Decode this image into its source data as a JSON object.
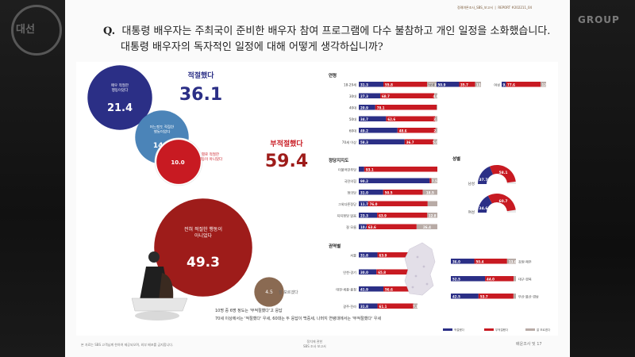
{
  "overlay": {
    "group_text": "GROUP"
  },
  "header": {
    "left": "정례여론조사_SBS_보고서",
    "right": "REPORT #202211_04"
  },
  "question": {
    "prefix": "Q.",
    "line1": "대통령 배우자는 주최국이 준비한 배우자 참여 프로그램에 다수 불참하고 개인 일정을 소화했습니다.",
    "line2": "대통령 배우자의 독자적인 일정에 대해 어떻게 생각하십니까?"
  },
  "colors": {
    "blue": "#2b2f86",
    "red": "#c81a22",
    "darkred": "#9e1c1a",
    "lightblue": "#4b84b8",
    "gray": "#b8aba6",
    "brown": "#8a6a52"
  },
  "chart_data": [
    {
      "type": "bubble",
      "summary": [
        {
          "label": "적절했다",
          "value": "36.1"
        },
        {
          "label": "부적절했다",
          "value": "59.4"
        }
      ],
      "bubbles": [
        {
          "label1": "매우 적절한",
          "label2": "행동이었다",
          "value": 21.4
        },
        {
          "label1": "어느정도 적절한",
          "label2": "행동이었다",
          "value": 14.7
        },
        {
          "label1": "별로 적절한",
          "label2": "행동이 아니었다",
          "value": 10.0
        },
        {
          "label1": "전혀 적절한 행동이",
          "label2": "아니었다",
          "value": 49.3
        },
        {
          "label1": "잘 모르겠다",
          "label2": "",
          "value": 4.5
        }
      ],
      "notes": [
        "10명 중 6명 정도는 '부적절했다'고 응답",
        "70세 이상에서는 '적절했다' 우세, 60대는 두 응답이 백중세, 나머지 연령대에서는 '부적절했다' 우세"
      ]
    },
    {
      "type": "stacked-bar",
      "title": "연령",
      "categories": [
        "18-29세",
        "30대",
        "40대",
        "50대",
        "60대",
        "70세 이상"
      ],
      "series": [
        {
          "values": [
            31.3,
            27.3,
            20.9,
            34.7,
            49.2,
            58.3
          ]
        },
        {
          "values": [
            55.8,
            68.7,
            78.1,
            62.6,
            48.6,
            36.7
          ]
        },
        {
          "values": [
            12.9,
            4.0,
            1.0,
            2.7,
            2.2,
            5.0
          ]
        }
      ]
    },
    {
      "type": "stacked-bar",
      "title": "",
      "categories": [
        "남성",
        "여성"
      ],
      "series": [
        {
          "values": [
            50.9,
            9.9
          ]
        },
        {
          "values": [
            35.7,
            77.6
          ]
        },
        {
          "values": [
            13.4,
            12.5
          ]
        }
      ]
    },
    {
      "type": "stacked-bar",
      "title": "정당지지도",
      "categories": [
        "더불어민주당",
        "국민의힘",
        "정의당",
        "그외다른정당",
        "지지정당 없음",
        "잘 모름"
      ],
      "series": [
        {
          "values": [
            6.9,
            90.2,
            31.0,
            11.7,
            23.3,
            10.0
          ]
        },
        {
          "values": [
            93.1,
            2.3,
            50.5,
            76.0,
            63.9,
            63.6
          ]
        },
        {
          "values": [
            0.0,
            7.5,
            18.5,
            12.3,
            12.8,
            26.4
          ]
        }
      ],
      "labels": [
        [
          "",
          "90.2",
          "31.0",
          "11.7",
          "23.3",
          "10.0"
        ],
        [
          "93.1",
          "",
          "50.5",
          "76.0",
          "63.9",
          "63.6"
        ],
        [
          "",
          "7.5",
          "18.5",
          "",
          "12.8",
          "26.4"
        ]
      ]
    },
    {
      "type": "donut",
      "title": "성별",
      "rings": [
        {
          "label": "남성",
          "blue": 37.7,
          "red": 58.1
        },
        {
          "label": "여성",
          "blue": 34.6,
          "red": 60.7
        }
      ]
    },
    {
      "type": "stacked-bar",
      "title": "권역별",
      "categories": [
        "서울",
        "인천·경기",
        "대전·세종·충청",
        "광주·전라"
      ],
      "series": [
        {
          "values": [
            31.8,
            30.0,
            41.9,
            31.8
          ]
        },
        {
          "values": [
            63.9,
            65.8,
            56.6,
            61.1
          ]
        },
        {
          "values": [
            4.3,
            4.2,
            1.5,
            7.1
          ]
        }
      ],
      "labels": [
        [
          "31.8",
          "30.0",
          "41.9",
          "31.8"
        ],
        [
          "63.9",
          "65.8",
          "56.6",
          "61.1"
        ],
        [
          "",
          "",
          "",
          "7.1"
        ]
      ]
    },
    {
      "type": "stacked-bar",
      "title": "",
      "categories": [
        "강원·제주",
        "대구·경북",
        "부산·울산·경남"
      ],
      "series": [
        {
          "values": [
            36.0,
            52.5,
            42.5
          ]
        },
        {
          "values": [
            50.4,
            44.0,
            53.7
          ]
        },
        {
          "values": [
            13.6,
            3.5,
            3.8
          ]
        }
      ],
      "labels": [
        [
          "36.0",
          "52.5",
          "42.5"
        ],
        [
          "50.4",
          "44.0",
          "53.7"
        ],
        [
          "13.6",
          "",
          ""
        ]
      ]
    }
  ],
  "legend": [
    "적절했다",
    "부적절했다",
    "잘 모르겠다"
  ],
  "footer": {
    "left": "본 자료는 SBS 고객님께 한하여 제공되오며, 외부 배포를 금지합니다.",
    "center1": "정치에 관한",
    "center2": "SBS 조사 보고서",
    "right": "배운조사 및",
    "page": "17"
  }
}
